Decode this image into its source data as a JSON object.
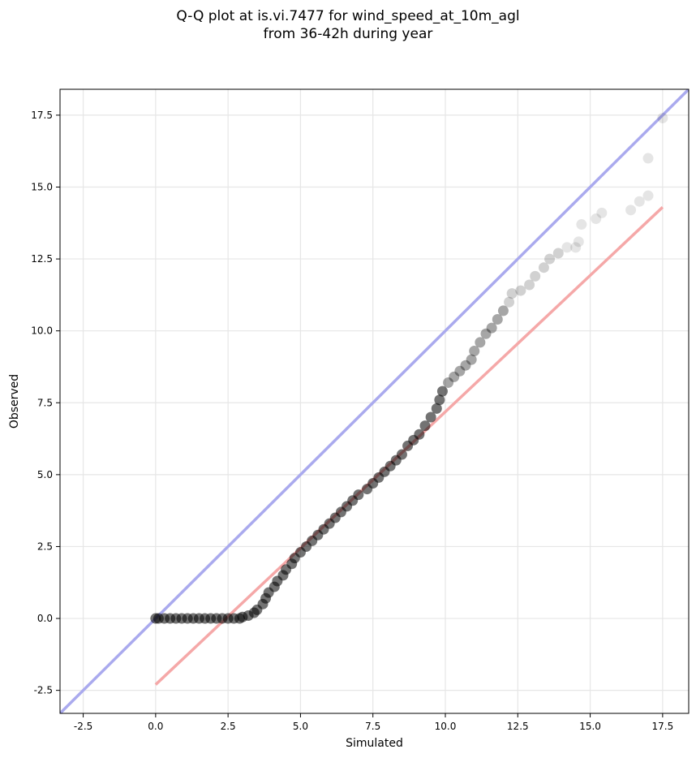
{
  "chart_data": {
    "type": "scatter",
    "title_line1": "Q-Q plot at is.vi.7477 for wind_speed_at_10m_agl",
    "title_line2": "from 36-42h during year",
    "xlabel": "Simulated",
    "ylabel": "Observed",
    "xlim": [
      -3.3,
      18.4
    ],
    "ylim": [
      -3.3,
      18.4
    ],
    "x_ticks": [
      "-2.5",
      "0.0",
      "2.5",
      "5.0",
      "7.5",
      "10.0",
      "12.5",
      "15.0",
      "17.5"
    ],
    "y_ticks": [
      "-2.5",
      "0.0",
      "2.5",
      "5.0",
      "7.5",
      "10.0",
      "12.5",
      "15.0",
      "17.5"
    ],
    "grid": true,
    "reference_lines": [
      {
        "kind": "identity",
        "color": "#aaaaee",
        "x": [
          -3.3,
          18.4
        ],
        "y": [
          -3.3,
          18.4
        ]
      },
      {
        "kind": "fit",
        "color": "#f5a8a8",
        "x": [
          0.0,
          17.5
        ],
        "y": [
          -2.3,
          14.3
        ]
      }
    ],
    "series": [
      {
        "marker_color": "#000000",
        "points": [
          [
            0.0,
            0.0
          ],
          [
            0.1,
            0.0
          ],
          [
            0.3,
            0.0
          ],
          [
            0.5,
            0.0
          ],
          [
            0.7,
            0.0
          ],
          [
            0.9,
            0.0
          ],
          [
            1.1,
            0.0
          ],
          [
            1.3,
            0.0
          ],
          [
            1.5,
            0.0
          ],
          [
            1.7,
            0.0
          ],
          [
            1.9,
            0.0
          ],
          [
            2.1,
            0.0
          ],
          [
            2.3,
            0.0
          ],
          [
            2.5,
            0.0
          ],
          [
            2.7,
            0.0
          ],
          [
            2.9,
            0.0
          ],
          [
            3.0,
            0.05
          ],
          [
            3.2,
            0.1
          ],
          [
            3.4,
            0.2
          ],
          [
            3.5,
            0.3
          ],
          [
            3.7,
            0.5
          ],
          [
            3.8,
            0.7
          ],
          [
            3.9,
            0.9
          ],
          [
            4.1,
            1.1
          ],
          [
            4.2,
            1.3
          ],
          [
            4.4,
            1.5
          ],
          [
            4.5,
            1.7
          ],
          [
            4.7,
            1.9
          ],
          [
            4.8,
            2.1
          ],
          [
            5.0,
            2.3
          ],
          [
            5.2,
            2.5
          ],
          [
            5.4,
            2.7
          ],
          [
            5.6,
            2.9
          ],
          [
            5.8,
            3.1
          ],
          [
            6.0,
            3.3
          ],
          [
            6.2,
            3.5
          ],
          [
            6.4,
            3.7
          ],
          [
            6.6,
            3.9
          ],
          [
            6.8,
            4.1
          ],
          [
            7.0,
            4.3
          ],
          [
            7.3,
            4.5
          ],
          [
            7.5,
            4.7
          ],
          [
            7.7,
            4.9
          ],
          [
            7.9,
            5.1
          ],
          [
            8.1,
            5.3
          ],
          [
            8.3,
            5.5
          ],
          [
            8.5,
            5.7
          ],
          [
            8.7,
            6.0
          ],
          [
            8.9,
            6.2
          ],
          [
            9.1,
            6.4
          ],
          [
            9.3,
            6.7
          ],
          [
            9.5,
            7.0
          ],
          [
            9.7,
            7.3
          ],
          [
            9.8,
            7.6
          ],
          [
            9.9,
            7.9
          ],
          [
            10.1,
            8.2
          ],
          [
            10.3,
            8.4
          ],
          [
            10.5,
            8.6
          ],
          [
            10.7,
            8.8
          ],
          [
            10.9,
            9.0
          ],
          [
            11.0,
            9.3
          ],
          [
            11.2,
            9.6
          ],
          [
            11.4,
            9.9
          ],
          [
            11.6,
            10.1
          ],
          [
            11.8,
            10.4
          ],
          [
            12.0,
            10.7
          ],
          [
            12.2,
            11.0
          ],
          [
            12.3,
            11.3
          ],
          [
            12.6,
            11.4
          ],
          [
            12.9,
            11.6
          ],
          [
            13.1,
            11.9
          ],
          [
            13.4,
            12.2
          ],
          [
            13.6,
            12.5
          ],
          [
            13.9,
            12.7
          ],
          [
            14.2,
            12.9
          ],
          [
            14.5,
            12.9
          ],
          [
            14.6,
            13.1
          ],
          [
            14.7,
            13.7
          ],
          [
            15.2,
            13.9
          ],
          [
            15.4,
            14.1
          ],
          [
            16.4,
            14.2
          ],
          [
            16.7,
            14.5
          ],
          [
            17.0,
            14.7
          ],
          [
            17.0,
            16.0
          ],
          [
            17.5,
            17.4
          ]
        ]
      }
    ]
  }
}
